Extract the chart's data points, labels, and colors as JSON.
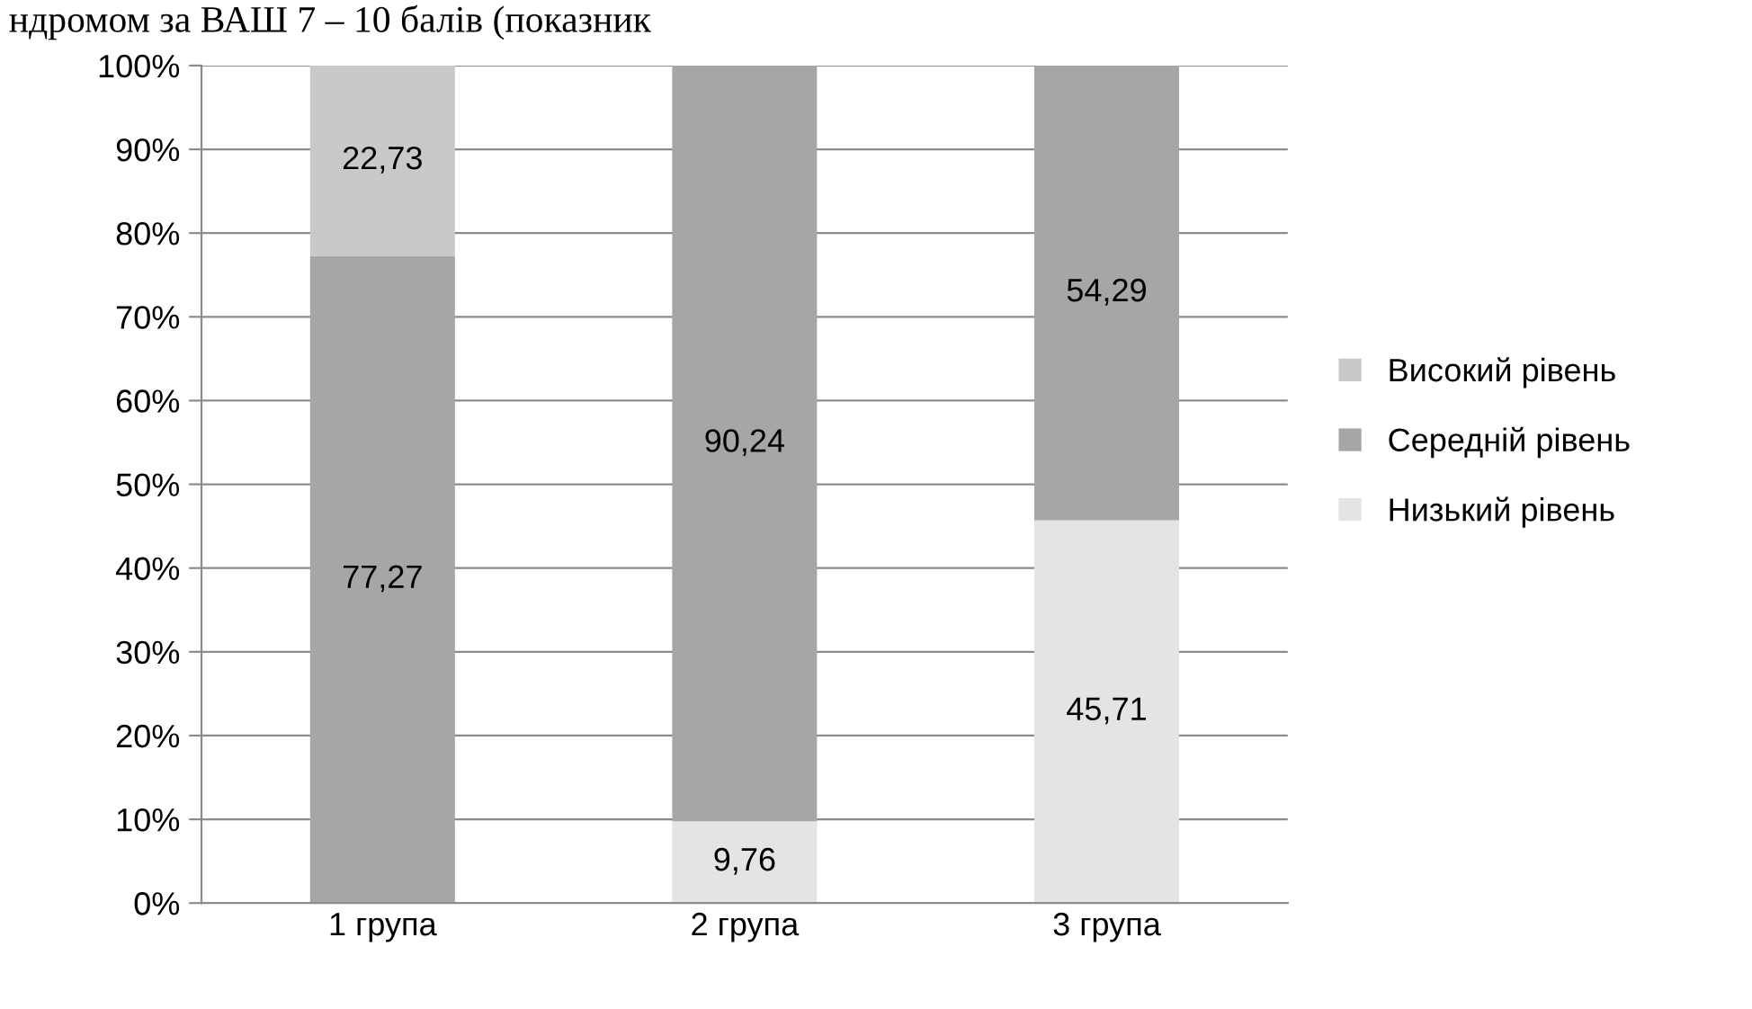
{
  "chart_data": {
    "type": "bar",
    "stacked": true,
    "categories": [
      "1 група",
      "2 група",
      "3 група"
    ],
    "series": [
      {
        "name": "Низький рівень",
        "color": "#e4e4e4",
        "values": [
          0,
          9.76,
          45.71
        ],
        "value_labels": [
          null,
          "9,76",
          "45,71"
        ]
      },
      {
        "name": "Середній рівень",
        "color": "#a6a6a6",
        "values": [
          77.27,
          90.24,
          54.29
        ],
        "value_labels": [
          "77,27",
          "90,24",
          "54,29"
        ]
      },
      {
        "name": "Високий рівень",
        "color": "#c9c9c9",
        "values": [
          22.73,
          0,
          0
        ],
        "value_labels": [
          "22,73",
          null,
          null
        ]
      }
    ],
    "ylim": [
      0,
      100
    ],
    "yticks": [
      {
        "value": 0,
        "label": "0%"
      },
      {
        "value": 10,
        "label": "10%"
      },
      {
        "value": 20,
        "label": "20%"
      },
      {
        "value": 30,
        "label": "30%"
      },
      {
        "value": 40,
        "label": "40%"
      },
      {
        "value": 50,
        "label": "50%"
      },
      {
        "value": 60,
        "label": "60%"
      },
      {
        "value": 70,
        "label": "70%"
      },
      {
        "value": 80,
        "label": "80%"
      },
      {
        "value": 90,
        "label": "90%"
      },
      {
        "value": 100,
        "label": "100%"
      }
    ],
    "grid": "y",
    "legend": "right",
    "annotations": [
      "ндромом за ВАШ 7 – 10 балів (показник"
    ]
  }
}
